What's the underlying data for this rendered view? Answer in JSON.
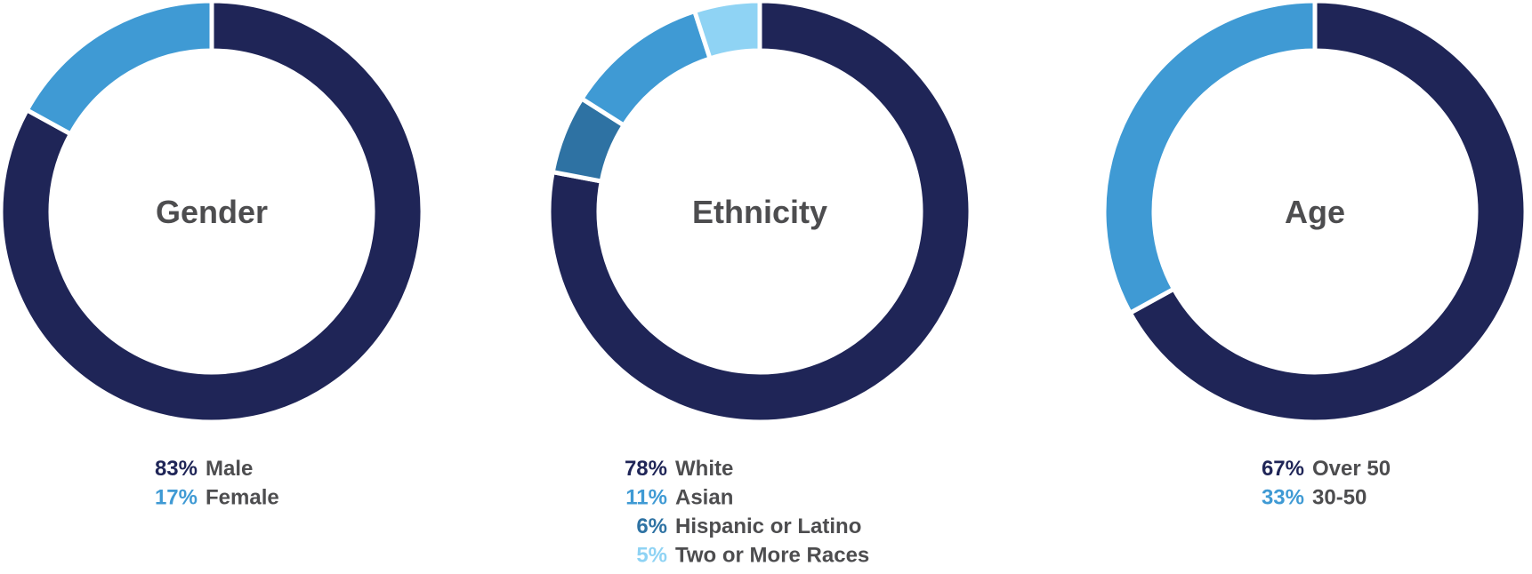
{
  "colors": {
    "navy": "#1f2557",
    "blue": "#3f9ad4",
    "steel": "#2e72a3",
    "light": "#8fd3f4",
    "text": "#4d4d4f",
    "divider": "#ffffff"
  },
  "chart_data": [
    {
      "type": "pie",
      "variant": "donut",
      "title": "Gender",
      "series": [
        {
          "name": "Male",
          "value": 83,
          "label": "83%",
          "color": "#1f2557"
        },
        {
          "name": "Female",
          "value": 17,
          "label": "17%",
          "color": "#3f9ad4"
        }
      ]
    },
    {
      "type": "pie",
      "variant": "donut",
      "title": "Ethnicity",
      "series": [
        {
          "name": "White",
          "value": 78,
          "label": "78%",
          "color": "#1f2557"
        },
        {
          "name": "Asian",
          "value": 11,
          "label": "11%",
          "color": "#3f9ad4"
        },
        {
          "name": "Hispanic or Latino",
          "value": 6,
          "label": "6%",
          "color": "#2e72a3"
        },
        {
          "name": "Two or More Races",
          "value": 5,
          "label": "5%",
          "color": "#8fd3f4"
        }
      ],
      "arc_order": [
        "White",
        "Hispanic or Latino",
        "Asian",
        "Two or More Races"
      ]
    },
    {
      "type": "pie",
      "variant": "donut",
      "title": "Age",
      "series": [
        {
          "name": "Over 50",
          "value": 67,
          "label": "67%",
          "color": "#1f2557"
        },
        {
          "name": "30-50",
          "value": 33,
          "label": "33%",
          "color": "#3f9ad4"
        }
      ]
    }
  ]
}
